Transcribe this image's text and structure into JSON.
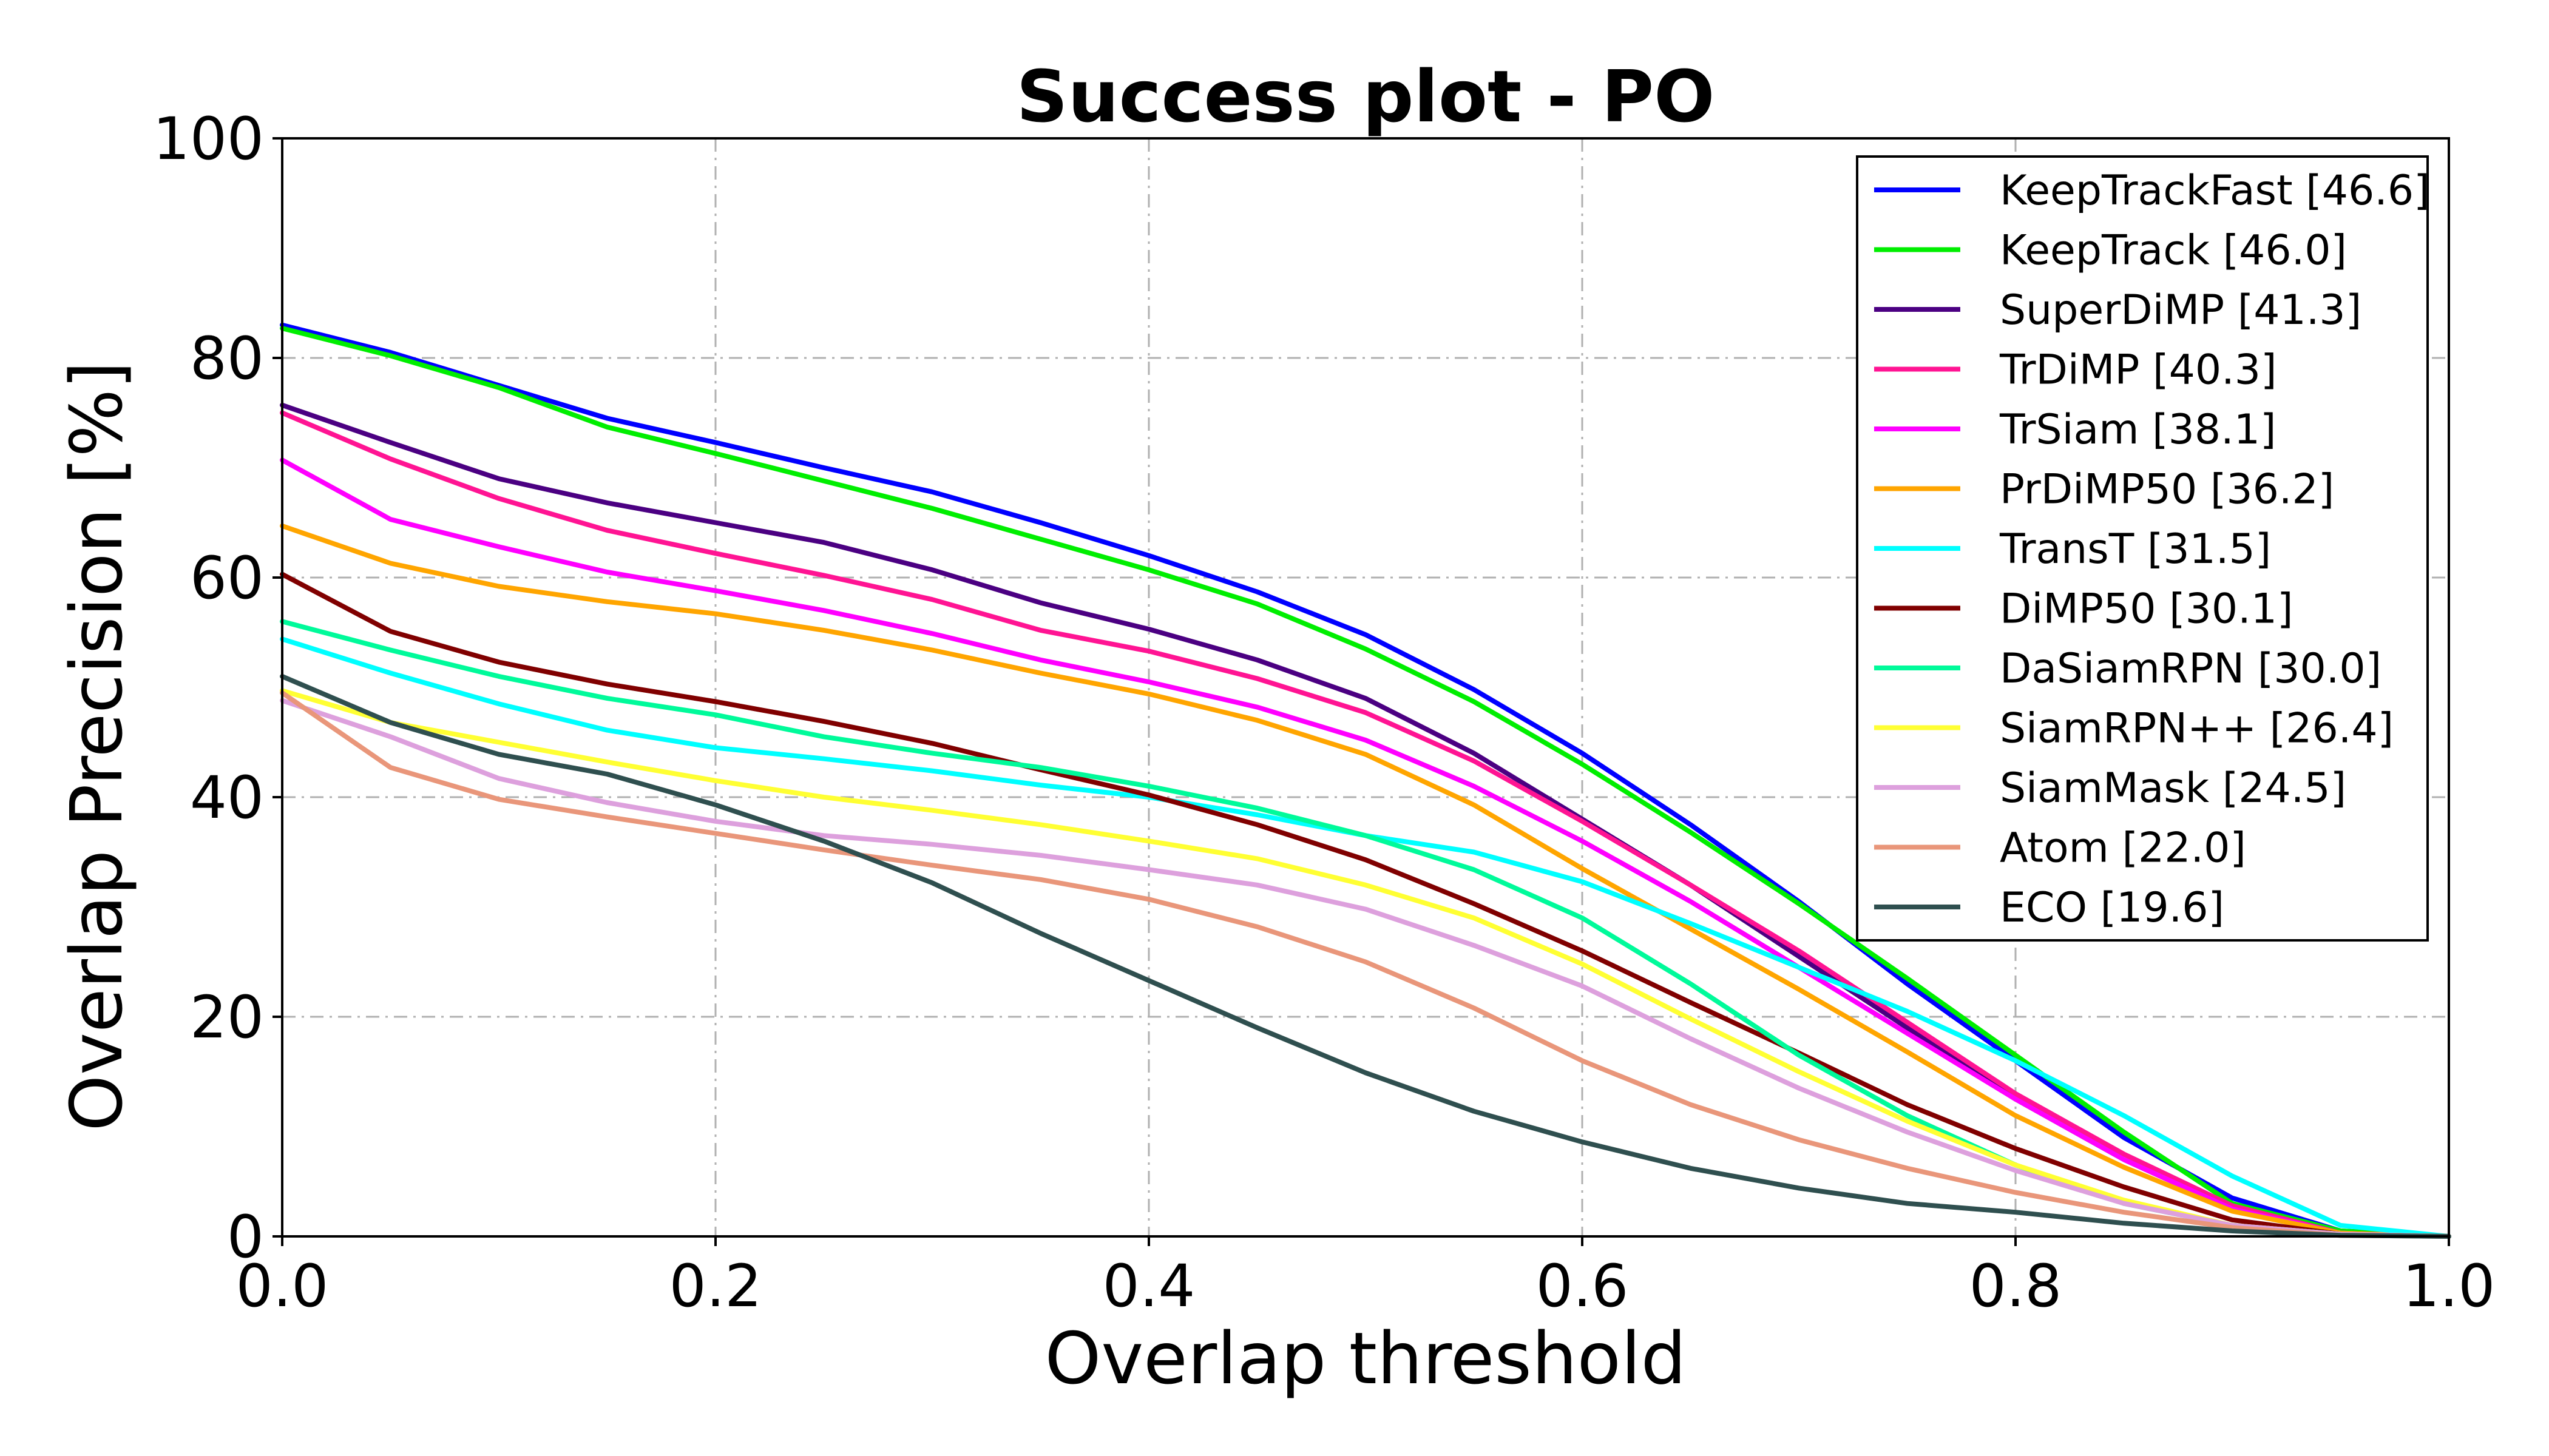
{
  "chart_data": {
    "type": "line",
    "title": "Success plot - PO",
    "xlabel": "Overlap threshold",
    "ylabel": "Overlap Precision [%]",
    "xlim": [
      0.0,
      1.0
    ],
    "ylim": [
      0,
      100
    ],
    "xticks": [
      "0.0",
      "0.2",
      "0.4",
      "0.6",
      "0.8",
      "1.0"
    ],
    "yticks": [
      "0",
      "20",
      "40",
      "60",
      "80",
      "100"
    ],
    "grid": true,
    "legend_position": "top-right",
    "x": [
      0.0,
      0.05,
      0.1,
      0.15,
      0.2,
      0.25,
      0.3,
      0.35,
      0.4,
      0.45,
      0.5,
      0.55,
      0.6,
      0.65,
      0.7,
      0.75,
      0.8,
      0.85,
      0.9,
      0.95,
      1.0
    ],
    "series": [
      {
        "name": "KeepTrackFast [46.6]",
        "color": "#0000ff",
        "values": [
          83,
          80.5,
          77.5,
          74.5,
          72.3,
          70,
          67.8,
          65,
          62,
          58.7,
          54.8,
          49.8,
          44,
          37.5,
          30.5,
          23,
          16,
          9,
          3.5,
          0.5,
          0
        ]
      },
      {
        "name": "KeepTrack [46.0]",
        "color": "#00ee00",
        "values": [
          82.7,
          80.2,
          77.3,
          73.7,
          71.3,
          68.8,
          66.3,
          63.5,
          60.7,
          57.6,
          53.5,
          48.7,
          43,
          36.8,
          30.3,
          23.5,
          16.5,
          9.5,
          3,
          0.5,
          0
        ]
      },
      {
        "name": "SuperDiMP [41.3]",
        "color": "#4b0082",
        "values": [
          75.7,
          72.3,
          69,
          66.8,
          65,
          63.2,
          60.7,
          57.7,
          55.3,
          52.5,
          49,
          44,
          38,
          32,
          25.5,
          19,
          12.5,
          7,
          2.5,
          0.3,
          0
        ]
      },
      {
        "name": "TrDiMP [40.3]",
        "color": "#ff1493",
        "values": [
          75,
          70.8,
          67.2,
          64.3,
          62.2,
          60.2,
          58,
          55.2,
          53.3,
          50.8,
          47.7,
          43.3,
          37.8,
          32,
          26,
          19.5,
          13,
          7.5,
          2.8,
          0.3,
          0
        ]
      },
      {
        "name": "TrSiam [38.1]",
        "color": "#ff00ff",
        "values": [
          70.7,
          65.3,
          62.8,
          60.5,
          58.8,
          57,
          54.9,
          52.5,
          50.5,
          48.2,
          45.2,
          41,
          36,
          30.5,
          24.5,
          18.5,
          12.5,
          7,
          2.5,
          0.3,
          0
        ]
      },
      {
        "name": "PrDiMP50 [36.2]",
        "color": "#ffa500",
        "values": [
          64.7,
          61.3,
          59.2,
          57.8,
          56.7,
          55.2,
          53.4,
          51.3,
          49.4,
          47,
          43.9,
          39.3,
          33.5,
          28,
          22.5,
          16.8,
          11,
          6.3,
          2.3,
          0.3,
          0
        ]
      },
      {
        "name": "TransT [31.5]",
        "color": "#00ffff",
        "values": [
          54.4,
          51.3,
          48.5,
          46.1,
          44.5,
          43.5,
          42.4,
          41.1,
          40,
          38.4,
          36.5,
          35,
          32.3,
          28.5,
          24.5,
          20.5,
          16,
          11,
          5.5,
          1,
          0
        ]
      },
      {
        "name": "DiMP50 [30.1]",
        "color": "#800000",
        "values": [
          60.3,
          55.1,
          52.3,
          50.3,
          48.7,
          46.9,
          44.9,
          42.5,
          40.2,
          37.5,
          34.3,
          30.3,
          26,
          21.3,
          16.7,
          12,
          8,
          4.5,
          1.5,
          0.2,
          0
        ]
      },
      {
        "name": "DaSiamRPN [30.0]",
        "color": "#00fa9a",
        "values": [
          56,
          53.4,
          51,
          49,
          47.5,
          45.5,
          44,
          42.7,
          41,
          39,
          36.5,
          33.4,
          29,
          23,
          16.5,
          11,
          6.5,
          3,
          1,
          0.2,
          0
        ]
      },
      {
        "name": "SiamRPN++ [26.4]",
        "color": "#ffff33",
        "values": [
          49.7,
          46.8,
          45,
          43.2,
          41.5,
          40,
          38.8,
          37.5,
          36,
          34.4,
          32,
          29,
          24.8,
          19.8,
          15,
          10.5,
          6.5,
          3.3,
          1,
          0.2,
          0
        ]
      },
      {
        "name": "SiamMask [24.5]",
        "color": "#dda0dd",
        "values": [
          48.8,
          45.5,
          41.7,
          39.5,
          37.8,
          36.5,
          35.7,
          34.7,
          33.4,
          32,
          29.8,
          26.5,
          22.8,
          18,
          13.5,
          9.5,
          6,
          3,
          1,
          0.2,
          0
        ]
      },
      {
        "name": "Atom [22.0]",
        "color": "#e9967a",
        "values": [
          49.5,
          42.7,
          39.8,
          38.2,
          36.7,
          35.2,
          33.8,
          32.5,
          30.7,
          28.2,
          25,
          20.8,
          16,
          12,
          8.8,
          6.2,
          4,
          2.2,
          0.8,
          0.1,
          0
        ]
      },
      {
        "name": "ECO [19.6]",
        "color": "#2f4f4f",
        "values": [
          51,
          46.8,
          43.9,
          42.1,
          39.3,
          36,
          32.2,
          27.6,
          23.3,
          19,
          14.9,
          11.4,
          8.6,
          6.2,
          4.4,
          3,
          2.2,
          1.2,
          0.5,
          0.1,
          0
        ]
      }
    ]
  }
}
